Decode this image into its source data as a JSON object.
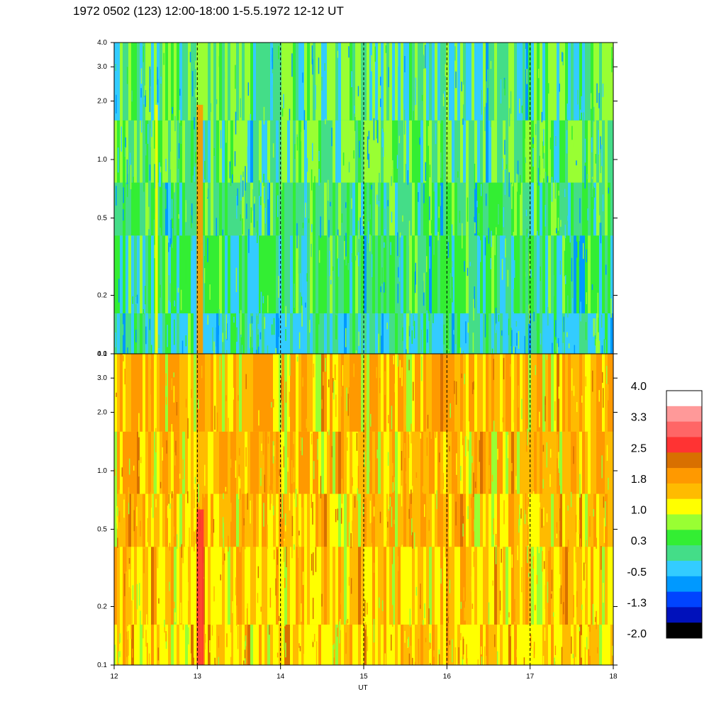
{
  "title": "1972 0502 (123) 12:00-18:00 1-5.5.1972  12-12 UT",
  "chart_data": {
    "type": "heatmap",
    "panels": [
      {
        "name": "upper",
        "x_range": [
          12,
          18
        ],
        "y_range": [
          0.1,
          4.0
        ],
        "y_scale": "log",
        "y_ticks": [
          "0.1",
          "0.2",
          "0.5",
          "1.0",
          "2.0",
          "3.0",
          "4.0"
        ],
        "y_tick_values": [
          0.1,
          0.2,
          0.5,
          1.0,
          2.0,
          3.0,
          4.0
        ],
        "dominant_levels": [
          -0.5,
          0.3,
          1.0
        ]
      },
      {
        "name": "lower",
        "x_range": [
          12,
          18
        ],
        "y_range": [
          0.1,
          4.0
        ],
        "y_scale": "log",
        "y_ticks": [
          "0.1",
          "0.2",
          "0.5",
          "1.0",
          "2.0",
          "3.0",
          "4.0"
        ],
        "y_tick_values": [
          0.1,
          0.2,
          0.5,
          1.0,
          2.0,
          3.0,
          4.0
        ],
        "dominant_levels": [
          1.0,
          1.8
        ]
      }
    ],
    "x_ticks": [
      "12",
      "13",
      "14",
      "15",
      "16",
      "17",
      "18"
    ],
    "x_tick_values": [
      12,
      13,
      14,
      15,
      16,
      17,
      18
    ],
    "xlabel": "UT",
    "hour_markers": [
      13,
      14,
      15,
      16,
      17
    ],
    "events": [
      {
        "x": 12.5,
        "panel": "upper",
        "note": "narrow yellow streak"
      },
      {
        "x": 13.0,
        "panel": "upper",
        "note": "orange streak"
      },
      {
        "x": 13.0,
        "panel": "lower",
        "note": "red streak"
      }
    ],
    "colorbar": {
      "labels": [
        "4.0",
        "3.3",
        "2.5",
        "1.8",
        "1.0",
        "0.3",
        "-0.5",
        "-1.3",
        "-2.0"
      ],
      "colors": [
        "#ffffff",
        "#ff9999",
        "#ff6666",
        "#ff3333",
        "#d87000",
        "#ff9900",
        "#ffbb00",
        "#ffff00",
        "#99ff33",
        "#33ee33",
        "#44dd88",
        "#33ccff",
        "#0099ff",
        "#0044ff",
        "#0011bb",
        "#000000"
      ]
    }
  }
}
